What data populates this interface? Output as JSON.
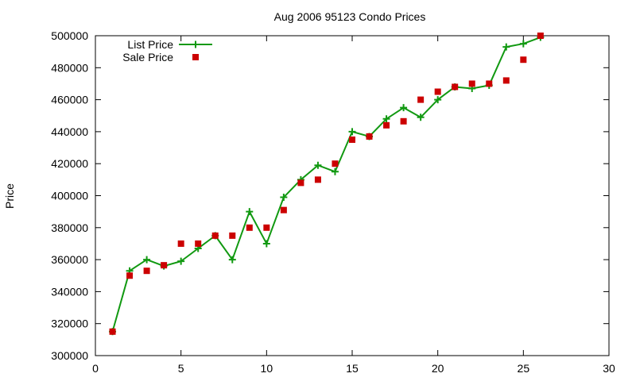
{
  "chart_data": {
    "type": "line",
    "title": "Aug 2006 95123 Condo Prices",
    "xlabel": "",
    "ylabel": "Price",
    "xlim": [
      0,
      30
    ],
    "ylim": [
      300000,
      500000
    ],
    "x_ticks": [
      "0",
      "5",
      "10",
      "15",
      "20",
      "25",
      "30"
    ],
    "y_ticks": [
      "300000",
      "320000",
      "340000",
      "360000",
      "380000",
      "400000",
      "420000",
      "440000",
      "460000",
      "480000",
      "500000"
    ],
    "grid": false,
    "legend_position": "top-left",
    "series": [
      {
        "name": "List Price",
        "style": "line-with-plus-markers",
        "color": "#119911",
        "x": [
          1,
          2,
          3,
          4,
          5,
          6,
          7,
          8,
          9,
          10,
          11,
          12,
          13,
          14,
          15,
          16,
          17,
          18,
          19,
          20,
          21,
          22,
          23,
          24,
          25,
          26
        ],
        "y": [
          315000,
          353000,
          360000,
          356000,
          359000,
          367000,
          375000,
          360000,
          390000,
          370000,
          399000,
          410000,
          419000,
          415000,
          440000,
          437000,
          448000,
          455000,
          449000,
          460000,
          468000,
          467000,
          469000,
          493000,
          495000,
          499000
        ]
      },
      {
        "name": "Sale Price",
        "style": "square-markers",
        "color": "#cc0000",
        "x": [
          1,
          2,
          3,
          4,
          5,
          6,
          7,
          8,
          9,
          10,
          11,
          12,
          13,
          14,
          15,
          16,
          17,
          18,
          19,
          20,
          21,
          22,
          23,
          24,
          25,
          26
        ],
        "y": [
          315000,
          350000,
          353000,
          356500,
          370000,
          370000,
          375000,
          375000,
          380000,
          380000,
          391000,
          408000,
          410000,
          420000,
          435000,
          437000,
          444000,
          446500,
          460000,
          465000,
          468000,
          470000,
          470000,
          472000,
          485000,
          500000
        ]
      }
    ]
  }
}
